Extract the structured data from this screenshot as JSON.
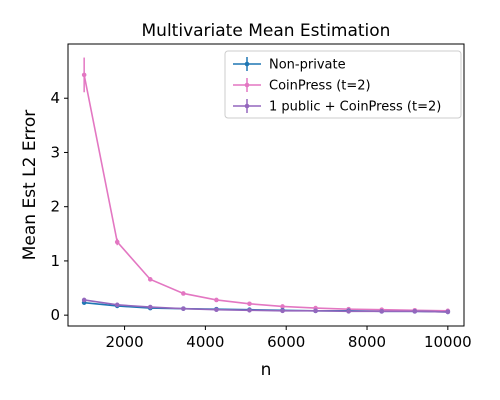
{
  "chart_data": {
    "type": "line",
    "title": "Multivariate Mean Estimation",
    "xlabel": "n",
    "ylabel": "Mean Est L2 Error",
    "xlim": [
      600,
      10400
    ],
    "ylim": [
      -0.2,
      5.0
    ],
    "x_ticks": [
      2000,
      4000,
      6000,
      8000,
      10000
    ],
    "x_tick_labels": [
      "2000",
      "4000",
      "6000",
      "8000",
      "10000"
    ],
    "y_ticks": [
      0,
      1,
      2,
      3,
      4
    ],
    "y_tick_labels": [
      "0",
      "1",
      "2",
      "3",
      "4"
    ],
    "grid": false,
    "legend_position": "top-right",
    "x": [
      1000,
      1818,
      2636,
      3455,
      4273,
      5091,
      5909,
      6727,
      7545,
      8364,
      9182,
      10000
    ],
    "series": [
      {
        "name": "Non-private",
        "color": "#1f77b4",
        "values": [
          0.23,
          0.17,
          0.13,
          0.12,
          0.11,
          0.1,
          0.09,
          0.08,
          0.08,
          0.07,
          0.07,
          0.06
        ],
        "errors": [
          0.02,
          0.01,
          0.01,
          0.01,
          0.01,
          0.01,
          0.01,
          0.01,
          0.01,
          0.01,
          0.01,
          0.01
        ]
      },
      {
        "name": "CoinPress (t=2)",
        "color": "#e377c2",
        "values": [
          4.43,
          1.35,
          0.66,
          0.4,
          0.28,
          0.21,
          0.16,
          0.13,
          0.11,
          0.1,
          0.09,
          0.08
        ],
        "errors": [
          0.32,
          0.06,
          0.02,
          0.01,
          0.01,
          0.01,
          0.01,
          0.01,
          0.01,
          0.01,
          0.01,
          0.01
        ]
      },
      {
        "name": "1 public + CoinPress (t=2)",
        "color": "#9467bd",
        "values": [
          0.28,
          0.19,
          0.15,
          0.12,
          0.1,
          0.09,
          0.08,
          0.08,
          0.07,
          0.07,
          0.07,
          0.06
        ],
        "errors": [
          0.02,
          0.01,
          0.01,
          0.01,
          0.01,
          0.01,
          0.01,
          0.01,
          0.01,
          0.01,
          0.01,
          0.01
        ]
      }
    ]
  }
}
